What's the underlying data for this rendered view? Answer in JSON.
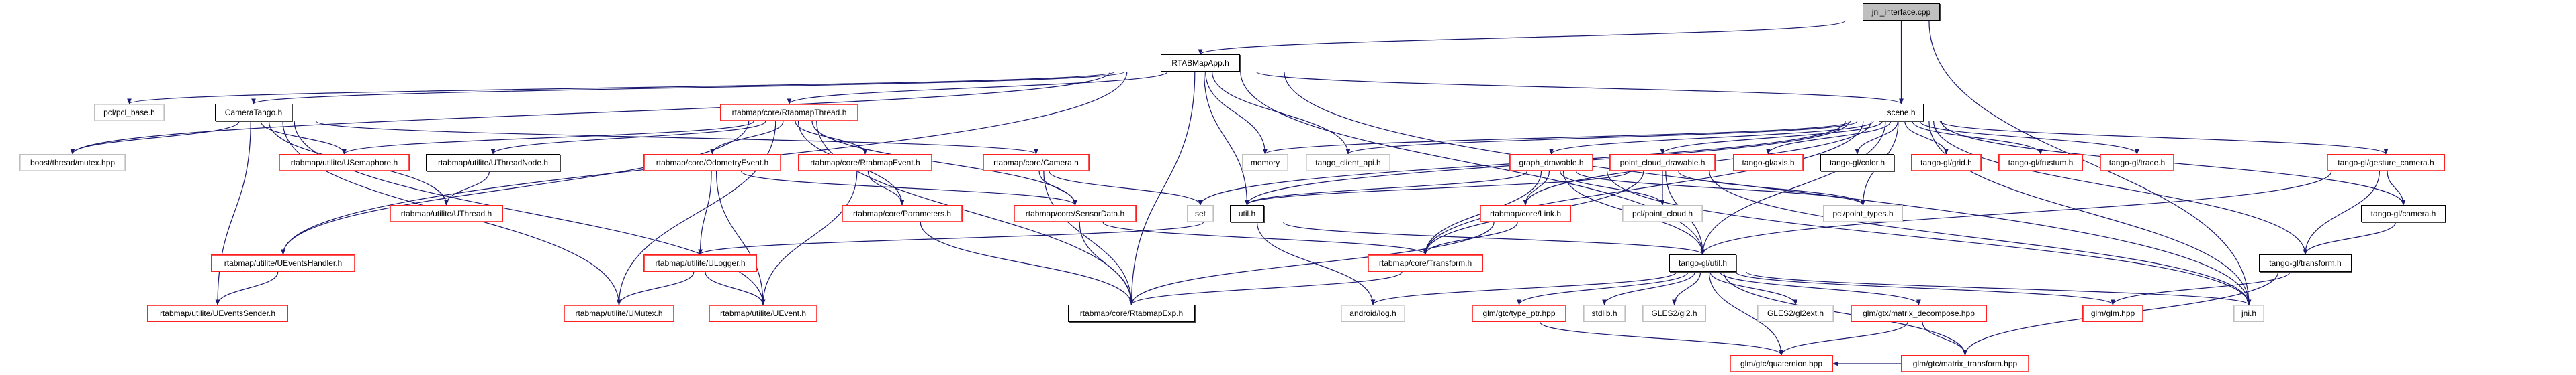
{
  "colors": {
    "edge": "#191970",
    "red_border": "#ff0000",
    "gray_border": "#bfbfbf",
    "black_border": "#000000",
    "root_fill": "#bfbfbf"
  },
  "nodes": [
    {
      "id": "jni_interface",
      "label": "jni_interface.cpp",
      "kind": "root"
    },
    {
      "id": "RTABMapApp",
      "label": "RTABMapApp.h",
      "kind": "black"
    },
    {
      "id": "pcl_base",
      "label": "pcl/pcl_base.h",
      "kind": "gray"
    },
    {
      "id": "CameraTango",
      "label": "CameraTango.h",
      "kind": "black"
    },
    {
      "id": "RtabmapThread",
      "label": "rtabmap/core/RtabmapThread.h",
      "kind": "red"
    },
    {
      "id": "scene",
      "label": "scene.h",
      "kind": "black"
    },
    {
      "id": "mutex",
      "label": "boost/thread/mutex.hpp",
      "kind": "gray"
    },
    {
      "id": "USemaphore",
      "label": "rtabmap/utilite/USemaphore.h",
      "kind": "red"
    },
    {
      "id": "UThreadNode",
      "label": "rtabmap/utilite/UThreadNode.h",
      "kind": "black"
    },
    {
      "id": "OdometryEvent",
      "label": "rtabmap/core/OdometryEvent.h",
      "kind": "red"
    },
    {
      "id": "RtabmapEvent",
      "label": "rtabmap/core/RtabmapEvent.h",
      "kind": "red"
    },
    {
      "id": "Camera",
      "label": "rtabmap/core/Camera.h",
      "kind": "red"
    },
    {
      "id": "memory",
      "label": "memory",
      "kind": "gray"
    },
    {
      "id": "tango_client_api",
      "label": "tango_client_api.h",
      "kind": "gray"
    },
    {
      "id": "graph_drawable",
      "label": "graph_drawable.h",
      "kind": "red"
    },
    {
      "id": "point_cloud_drawable",
      "label": "point_cloud_drawable.h",
      "kind": "red"
    },
    {
      "id": "axis",
      "label": "tango-gl/axis.h",
      "kind": "red"
    },
    {
      "id": "color",
      "label": "tango-gl/color.h",
      "kind": "black"
    },
    {
      "id": "grid",
      "label": "tango-gl/grid.h",
      "kind": "red"
    },
    {
      "id": "frustum",
      "label": "tango-gl/frustum.h",
      "kind": "red"
    },
    {
      "id": "trace",
      "label": "tango-gl/trace.h",
      "kind": "red"
    },
    {
      "id": "gesture_camera",
      "label": "tango-gl/gesture_camera.h",
      "kind": "red"
    },
    {
      "id": "UThread",
      "label": "rtabmap/utilite/UThread.h",
      "kind": "red"
    },
    {
      "id": "Parameters",
      "label": "rtabmap/core/Parameters.h",
      "kind": "red"
    },
    {
      "id": "SensorData",
      "label": "rtabmap/core/SensorData.h",
      "kind": "red"
    },
    {
      "id": "set",
      "label": "set",
      "kind": "gray"
    },
    {
      "id": "util",
      "label": "util.h",
      "kind": "black"
    },
    {
      "id": "Link",
      "label": "rtabmap/core/Link.h",
      "kind": "red"
    },
    {
      "id": "point_cloud",
      "label": "pcl/point_cloud.h",
      "kind": "gray"
    },
    {
      "id": "point_types",
      "label": "pcl/point_types.h",
      "kind": "gray"
    },
    {
      "id": "tg_camera",
      "label": "tango-gl/camera.h",
      "kind": "black"
    },
    {
      "id": "UEventsHandler",
      "label": "rtabmap/utilite/UEventsHandler.h",
      "kind": "red"
    },
    {
      "id": "ULogger",
      "label": "rtabmap/utilite/ULogger.h",
      "kind": "red"
    },
    {
      "id": "Transform",
      "label": "rtabmap/core/Transform.h",
      "kind": "red"
    },
    {
      "id": "tg_util",
      "label": "tango-gl/util.h",
      "kind": "black"
    },
    {
      "id": "tg_transform",
      "label": "tango-gl/transform.h",
      "kind": "black"
    },
    {
      "id": "UEventsSender",
      "label": "rtabmap/utilite/UEventsSender.h",
      "kind": "red"
    },
    {
      "id": "UMutex",
      "label": "rtabmap/utilite/UMutex.h",
      "kind": "red"
    },
    {
      "id": "UEvent",
      "label": "rtabmap/utilite/UEvent.h",
      "kind": "red"
    },
    {
      "id": "RtabmapExp",
      "label": "rtabmap/core/RtabmapExp.h",
      "kind": "black"
    },
    {
      "id": "android_log",
      "label": "android/log.h",
      "kind": "gray"
    },
    {
      "id": "type_ptr",
      "label": "glm/gtc/type_ptr.hpp",
      "kind": "red"
    },
    {
      "id": "stdlib",
      "label": "stdlib.h",
      "kind": "gray"
    },
    {
      "id": "gl2",
      "label": "GLES2/gl2.h",
      "kind": "gray"
    },
    {
      "id": "gl2ext",
      "label": "GLES2/gl2ext.h",
      "kind": "gray"
    },
    {
      "id": "matrix_decompose",
      "label": "glm/gtx/matrix_decompose.hpp",
      "kind": "red"
    },
    {
      "id": "glm",
      "label": "glm/glm.hpp",
      "kind": "red"
    },
    {
      "id": "jni",
      "label": "jni.h",
      "kind": "gray"
    },
    {
      "id": "quaternion",
      "label": "glm/gtc/quaternion.hpp",
      "kind": "red"
    },
    {
      "id": "matrix_transform",
      "label": "glm/gtc/matrix_transform.hpp",
      "kind": "red"
    }
  ],
  "edges": [
    [
      "jni_interface",
      "RTABMapApp"
    ],
    [
      "jni_interface",
      "scene"
    ],
    [
      "jni_interface",
      "jni"
    ],
    [
      "RTABMapApp",
      "pcl_base"
    ],
    [
      "RTABMapApp",
      "CameraTango"
    ],
    [
      "RTABMapApp",
      "mutex"
    ],
    [
      "RTABMapApp",
      "UEventsHandler"
    ],
    [
      "RTABMapApp",
      "RtabmapThread"
    ],
    [
      "RTABMapApp",
      "memory"
    ],
    [
      "RTABMapApp",
      "tango_client_api"
    ],
    [
      "RTABMapApp",
      "util"
    ],
    [
      "RTABMapApp",
      "scene"
    ],
    [
      "RTABMapApp",
      "tg_util"
    ],
    [
      "RTABMapApp",
      "jni"
    ],
    [
      "RTABMapApp",
      "RtabmapExp"
    ],
    [
      "CameraTango",
      "mutex"
    ],
    [
      "CameraTango",
      "USemaphore"
    ],
    [
      "CameraTango",
      "UThread"
    ],
    [
      "CameraTango",
      "UEventsSender"
    ],
    [
      "CameraTango",
      "UMutex"
    ],
    [
      "CameraTango",
      "Camera"
    ],
    [
      "CameraTango",
      "UEvent"
    ],
    [
      "UThreadNode",
      "UThread"
    ],
    [
      "UEventsHandler",
      "UEventsSender"
    ],
    [
      "RtabmapThread",
      "USemaphore"
    ],
    [
      "RtabmapThread",
      "UThreadNode"
    ],
    [
      "RtabmapThread",
      "UEventsHandler"
    ],
    [
      "RtabmapThread",
      "UMutex"
    ],
    [
      "RtabmapThread",
      "OdometryEvent"
    ],
    [
      "RtabmapThread",
      "RtabmapEvent"
    ],
    [
      "RtabmapThread",
      "Parameters"
    ],
    [
      "RtabmapThread",
      "SensorData"
    ],
    [
      "RtabmapThread",
      "RtabmapExp"
    ],
    [
      "OdometryEvent",
      "ULogger"
    ],
    [
      "OdometryEvent",
      "UEvent"
    ],
    [
      "OdometryEvent",
      "SensorData"
    ],
    [
      "RtabmapEvent",
      "Parameters"
    ],
    [
      "RtabmapEvent",
      "UEvent"
    ],
    [
      "Camera",
      "SensorData"
    ],
    [
      "Camera",
      "RtabmapExp"
    ],
    [
      "Camera",
      "set"
    ],
    [
      "Parameters",
      "RtabmapExp"
    ],
    [
      "SensorData",
      "RtabmapExp"
    ],
    [
      "SensorData",
      "Transform"
    ],
    [
      "ULogger",
      "UMutex"
    ],
    [
      "ULogger",
      "UEvent"
    ],
    [
      "util",
      "ULogger"
    ],
    [
      "util",
      "android_log"
    ],
    [
      "util",
      "tg_util"
    ],
    [
      "scene",
      "memory"
    ],
    [
      "scene",
      "tango_client_api"
    ],
    [
      "scene",
      "set"
    ],
    [
      "scene",
      "util"
    ],
    [
      "scene",
      "graph_drawable"
    ],
    [
      "scene",
      "point_cloud_drawable"
    ],
    [
      "scene",
      "axis"
    ],
    [
      "scene",
      "color"
    ],
    [
      "scene",
      "grid"
    ],
    [
      "scene",
      "frustum"
    ],
    [
      "scene",
      "trace"
    ],
    [
      "scene",
      "gesture_camera"
    ],
    [
      "scene",
      "tg_camera"
    ],
    [
      "scene",
      "tg_transform"
    ],
    [
      "scene",
      "Link"
    ],
    [
      "scene",
      "Transform"
    ],
    [
      "scene",
      "point_types"
    ],
    [
      "scene",
      "tg_util"
    ],
    [
      "scene",
      "jni"
    ],
    [
      "graph_drawable",
      "Link"
    ],
    [
      "graph_drawable",
      "Transform"
    ],
    [
      "graph_drawable",
      "util"
    ],
    [
      "graph_drawable",
      "tg_util"
    ],
    [
      "graph_drawable",
      "point_cloud"
    ],
    [
      "graph_drawable",
      "point_types"
    ],
    [
      "graph_drawable",
      "jni"
    ],
    [
      "point_cloud_drawable",
      "point_cloud"
    ],
    [
      "point_cloud_drawable",
      "point_types"
    ],
    [
      "point_cloud_drawable",
      "tg_util"
    ],
    [
      "point_cloud_drawable",
      "Transform"
    ],
    [
      "point_cloud_drawable",
      "util"
    ],
    [
      "point_cloud_drawable",
      "jni"
    ],
    [
      "Link",
      "Transform"
    ],
    [
      "Link",
      "RtabmapExp"
    ],
    [
      "Transform",
      "RtabmapExp"
    ],
    [
      "tg_util",
      "android_log"
    ],
    [
      "tg_util",
      "type_ptr"
    ],
    [
      "tg_util",
      "stdlib"
    ],
    [
      "tg_util",
      "gl2"
    ],
    [
      "tg_util",
      "gl2ext"
    ],
    [
      "tg_util",
      "matrix_decompose"
    ],
    [
      "tg_util",
      "quaternion"
    ],
    [
      "tg_util",
      "glm"
    ],
    [
      "tg_util",
      "jni"
    ],
    [
      "tg_util",
      "matrix_transform"
    ],
    [
      "type_ptr",
      "quaternion"
    ],
    [
      "matrix_decompose",
      "quaternion"
    ],
    [
      "matrix_decompose",
      "matrix_transform"
    ],
    [
      "matrix_transform",
      "quaternion"
    ],
    [
      "gesture_camera",
      "tg_camera"
    ],
    [
      "gesture_camera",
      "tg_transform"
    ],
    [
      "gesture_camera",
      "tg_util"
    ],
    [
      "tg_camera",
      "tg_transform"
    ],
    [
      "tg_transform",
      "glm"
    ],
    [
      "tg_transform",
      "matrix_transform"
    ]
  ]
}
